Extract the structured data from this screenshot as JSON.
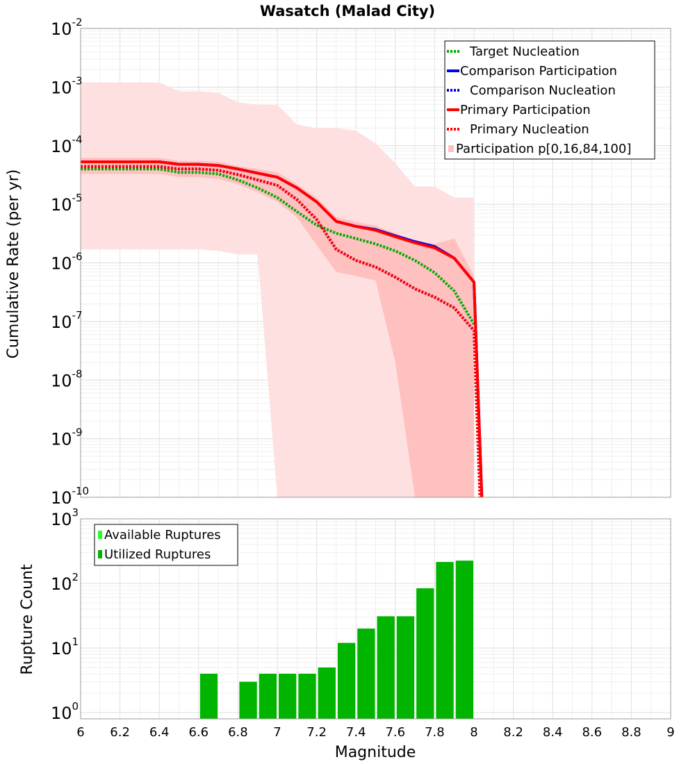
{
  "chart_data": [
    {
      "type": "line",
      "title": "Wasatch (Malad City)",
      "xlabel": "",
      "ylabel": "Cumulative Rate (per yr)",
      "xlim": [
        6,
        9
      ],
      "ylim": [
        1e-10,
        0.01
      ],
      "yscale": "log",
      "y_tick_exponents": [
        "-2",
        "-3",
        "-4",
        "-5",
        "-6",
        "-7",
        "-8",
        "-9",
        "-10"
      ],
      "y_tick_base": "10",
      "legend_position": "top-right",
      "legend": [
        "Target Nucleation",
        "Comparison Participation",
        "Comparison Nucleation",
        "Primary Participation",
        "Primary Nucleation",
        "Participation p[0,16,84,100]"
      ],
      "colors": {
        "target": "#00aa00",
        "comparison": "#0000ee",
        "primary": "#ff0000",
        "band_outer": "#ffe0e0",
        "band_inner": "#ffc0c0"
      },
      "band_x": [
        6.0,
        6.1,
        6.2,
        6.3,
        6.4,
        6.5,
        6.6,
        6.7,
        6.8,
        6.9,
        7.0,
        7.1,
        7.2,
        7.3,
        7.4,
        7.5,
        7.6,
        7.7,
        7.8,
        7.9,
        8.0
      ],
      "band_p100": [
        0.0012,
        0.0012,
        0.0012,
        0.0012,
        0.0012,
        0.00085,
        0.00085,
        0.0008,
        0.00055,
        0.0005,
        0.0005,
        0.00023,
        0.0002,
        0.0002,
        0.00018,
        0.00011,
        5e-05,
        2e-05,
        2e-05,
        1.3e-05,
        1.3e-05
      ],
      "band_p0": [
        1.7e-06,
        1.7e-06,
        1.7e-06,
        1.7e-06,
        1.7e-06,
        1.7e-06,
        1.7e-06,
        1.6e-06,
        1.4e-06,
        1.4e-06,
        null,
        null,
        null,
        null,
        null,
        null,
        null,
        null,
        null,
        null,
        null
      ],
      "band_p84": [
        6.2e-05,
        6.2e-05,
        6.2e-05,
        6.2e-05,
        6.2e-05,
        5.5e-05,
        5.5e-05,
        5.3e-05,
        4.5e-05,
        4e-05,
        3.5e-05,
        2.2e-05,
        1.3e-05,
        6e-06,
        5e-06,
        4.3e-06,
        3.2e-06,
        2.4e-06,
        2.1e-06,
        2.6e-06,
        6e-07
      ],
      "band_p16": [
        3.3e-05,
        3.3e-05,
        3.3e-05,
        3.3e-05,
        3.3e-05,
        2.9e-05,
        2.9e-05,
        2.7e-05,
        2.2e-05,
        1.6e-05,
        1.1e-05,
        6e-06,
        2e-06,
        7e-07,
        6e-07,
        5e-07,
        2e-08,
        null,
        null,
        null,
        null
      ],
      "series": [
        {
          "name": "Target Nucleation",
          "style": "dotted",
          "color": "#00aa00",
          "x": [
            6.0,
            6.2,
            6.4,
            6.5,
            6.6,
            6.7,
            6.8,
            6.9,
            7.0,
            7.1,
            7.2,
            7.3,
            7.4,
            7.5,
            7.6,
            7.7,
            7.8,
            7.9,
            8.0
          ],
          "y": [
            4e-05,
            4e-05,
            4e-05,
            3.5e-05,
            3.5e-05,
            3.3e-05,
            2.6e-05,
            1.9e-05,
            1.3e-05,
            7.5e-06,
            4.4e-06,
            3.2e-06,
            2.6e-06,
            2.1e-06,
            1.6e-06,
            1.1e-06,
            6.8e-07,
            3.3e-07,
            9e-08
          ]
        },
        {
          "name": "Comparison Participation",
          "style": "solid",
          "color": "#0000ee",
          "x": [
            6.0,
            6.2,
            6.4,
            6.5,
            6.6,
            6.7,
            6.8,
            6.9,
            7.0,
            7.1,
            7.2,
            7.3,
            7.4,
            7.5,
            7.6,
            7.7,
            7.8,
            7.9,
            8.0,
            8.04
          ],
          "y": [
            5.3e-05,
            5.3e-05,
            5.3e-05,
            4.8e-05,
            4.8e-05,
            4.6e-05,
            4e-05,
            3.4e-05,
            2.9e-05,
            1.9e-05,
            1.1e-05,
            5.1e-06,
            4.2e-06,
            3.7e-06,
            2.9e-06,
            2.3e-06,
            1.9e-06,
            1.2e-06,
            4.7e-07,
            1e-10
          ]
        },
        {
          "name": "Comparison Nucleation",
          "style": "dotted",
          "color": "#0000ee",
          "x": [
            6.0,
            6.2,
            6.4,
            6.5,
            6.6,
            6.7,
            6.8,
            6.9,
            7.0,
            7.1,
            7.2,
            7.3,
            7.4,
            7.5,
            7.6,
            7.7,
            7.8,
            7.9,
            8.0
          ],
          "y": [
            4.4e-05,
            4.4e-05,
            4.4e-05,
            4e-05,
            4e-05,
            3.8e-05,
            3.2e-05,
            2.6e-05,
            2.1e-05,
            1.2e-05,
            5.5e-06,
            1.7e-06,
            1.1e-06,
            8.5e-07,
            5.7e-07,
            3.6e-07,
            2.6e-07,
            1.7e-07,
            7e-08
          ]
        },
        {
          "name": "Primary Participation",
          "style": "solid",
          "color": "#ff0000",
          "x": [
            6.0,
            6.2,
            6.4,
            6.5,
            6.6,
            6.7,
            6.8,
            6.9,
            7.0,
            7.1,
            7.2,
            7.3,
            7.4,
            7.5,
            7.6,
            7.7,
            7.8,
            7.9,
            8.0,
            8.04
          ],
          "y": [
            5.3e-05,
            5.3e-05,
            5.3e-05,
            4.8e-05,
            4.8e-05,
            4.6e-05,
            4e-05,
            3.4e-05,
            2.9e-05,
            1.9e-05,
            1.1e-05,
            5.1e-06,
            4.2e-06,
            3.6e-06,
            2.8e-06,
            2.2e-06,
            1.8e-06,
            1.2e-06,
            4.7e-07,
            1e-10
          ]
        },
        {
          "name": "Primary Nucleation",
          "style": "dotted",
          "color": "#ff0000",
          "x": [
            6.0,
            6.2,
            6.4,
            6.5,
            6.6,
            6.7,
            6.8,
            6.9,
            7.0,
            7.1,
            7.2,
            7.3,
            7.4,
            7.5,
            7.6,
            7.7,
            7.8,
            7.9,
            8.0,
            8.03
          ],
          "y": [
            4.4e-05,
            4.4e-05,
            4.4e-05,
            4e-05,
            4e-05,
            3.8e-05,
            3.2e-05,
            2.6e-05,
            2.1e-05,
            1.2e-05,
            5.5e-06,
            1.7e-06,
            1.1e-06,
            8.5e-07,
            5.7e-07,
            3.6e-07,
            2.6e-07,
            1.7e-07,
            7e-08,
            1e-10
          ]
        }
      ]
    },
    {
      "type": "bar",
      "title": "",
      "xlabel": "Magnitude",
      "ylabel": "Rupture Count",
      "xlim": [
        6,
        9
      ],
      "ylim": [
        0.8,
        1000
      ],
      "yscale": "log",
      "x_ticks": [
        "6",
        "6.2",
        "6.4",
        "6.6",
        "6.8",
        "7",
        "7.2",
        "7.4",
        "7.6",
        "7.8",
        "8",
        "8.2",
        "8.4",
        "8.6",
        "8.8",
        "9"
      ],
      "y_tick_exponents": [
        "3",
        "2",
        "1",
        "0"
      ],
      "y_tick_base": "10",
      "legend_position": "top-left",
      "legend": [
        "Available Ruptures",
        "Utilized Ruptures"
      ],
      "colors": {
        "available": "#22ff22",
        "utilized": "#00b400"
      },
      "bin_width": 0.1,
      "bins": [
        6.65,
        6.85,
        6.95,
        7.05,
        7.15,
        7.25,
        7.35,
        7.45,
        7.55,
        7.65,
        7.75,
        7.85,
        7.95
      ],
      "series": [
        {
          "name": "Utilized Ruptures",
          "values": [
            4,
            3,
            4,
            4,
            4,
            5,
            12,
            20,
            31,
            31,
            84,
            215,
            225
          ]
        }
      ]
    }
  ]
}
